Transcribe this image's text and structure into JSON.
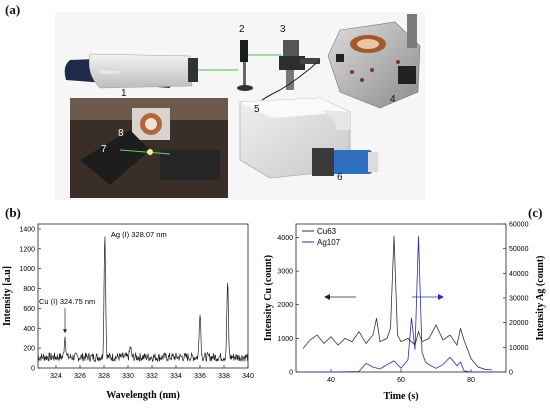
{
  "panels": {
    "a": "(a)",
    "b": "(b)",
    "c": "(c)"
  },
  "photo_callouts": [
    "1",
    "2",
    "3",
    "4",
    "5",
    "6",
    "7",
    "8"
  ],
  "chart_data": [
    {
      "type": "line",
      "panel": "(b)",
      "xlabel": "Wavelength (nm)",
      "ylabel": "Intensity [a.u]",
      "xlim": [
        322.5,
        340
      ],
      "ylim": [
        0,
        1450
      ],
      "xticks": [
        324,
        326,
        328,
        330,
        332,
        334,
        336,
        338,
        340
      ],
      "yticks": [
        0,
        200,
        400,
        600,
        800,
        1000,
        1200,
        1400
      ],
      "series": [
        {
          "color": "#222222",
          "peaks": [
            [
              324.75,
              320
            ],
            [
              328.07,
              1360
            ],
            [
              330.2,
              210
            ],
            [
              336.0,
              580
            ],
            [
              338.3,
              860
            ]
          ],
          "baseline": 110,
          "noise": 45
        }
      ],
      "annotations": [
        {
          "text": "Ag (I) 328.07 nm",
          "x": 328.07,
          "y": 1360
        },
        {
          "text": "Cu (I) 324.75 nm",
          "x": 324.75,
          "y": 320
        }
      ]
    },
    {
      "type": "line",
      "panel": "(c)",
      "xlabel": "Time (s)",
      "ylabel_left": "Intensity Cu (count)",
      "ylabel_right": "Intensity Ag (count)",
      "xlim": [
        30,
        90
      ],
      "ylim_left": [
        0,
        4400
      ],
      "ylim_right": [
        0,
        60000
      ],
      "xticks": [
        40,
        60,
        80
      ],
      "yticks_left": [
        0,
        1000,
        2000,
        3000,
        4000
      ],
      "yticks_right": [
        0,
        10000,
        20000,
        30000,
        40000,
        50000,
        60000
      ],
      "legend": "top-left",
      "series": [
        {
          "name": "Cu63",
          "color": "#333333",
          "axis": "left",
          "x": [
            32,
            34,
            36,
            38,
            40,
            42,
            44,
            46,
            48,
            50,
            52,
            53,
            54,
            56,
            57,
            58,
            59,
            60,
            62,
            64,
            65,
            66,
            68,
            70,
            72,
            74,
            76,
            77,
            78,
            80,
            82,
            84,
            86
          ],
          "y": [
            700,
            950,
            1100,
            850,
            1050,
            800,
            1000,
            900,
            1200,
            850,
            1100,
            1600,
            900,
            1000,
            1300,
            4050,
            1100,
            900,
            1000,
            800,
            1200,
            900,
            1000,
            1400,
            950,
            1100,
            800,
            1300,
            950,
            400,
            150,
            80,
            60
          ]
        },
        {
          "name": "Ag107",
          "color": "#2a2ab5",
          "axis": "right",
          "x": [
            32,
            40,
            48,
            50,
            52,
            54,
            56,
            58,
            60,
            62,
            63,
            64,
            65,
            66,
            67,
            68,
            70,
            72,
            74,
            76,
            77,
            78,
            80,
            84,
            88
          ],
          "y": [
            0,
            0,
            200,
            3500,
            2000,
            1200,
            3000,
            4500,
            1500,
            5000,
            22000,
            9000,
            55000,
            8000,
            4000,
            3000,
            1500,
            3000,
            6000,
            2500,
            4000,
            500,
            0,
            0,
            0
          ]
        }
      ]
    }
  ]
}
